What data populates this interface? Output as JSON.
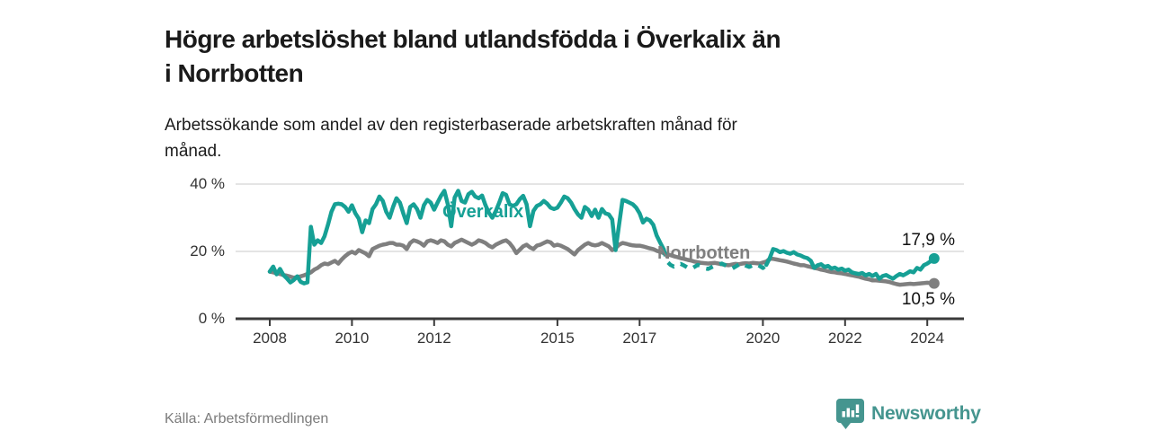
{
  "header": {
    "title_lines": [
      "Högre arbetslöshet bland utlandsfödda i Överkalix än",
      "i Norrbotten"
    ],
    "subtitle_lines": [
      "Arbetssökande som andel av den registerbaserade arbetskraften månad för",
      "månad."
    ]
  },
  "chart_data": {
    "type": "line",
    "unit": "%",
    "x_start_year": 2008,
    "x_step": "monthly",
    "ylim": [
      0,
      42
    ],
    "grid": true,
    "x_ticks": [
      {
        "label": "2008",
        "value": 2008
      },
      {
        "label": "2010",
        "value": 2010
      },
      {
        "label": "2012",
        "value": 2012
      },
      {
        "label": "2015",
        "value": 2015
      },
      {
        "label": "2017",
        "value": 2017
      },
      {
        "label": "2020",
        "value": 2020
      },
      {
        "label": "2022",
        "value": 2022
      },
      {
        "label": "2024",
        "value": 2024
      }
    ],
    "y_ticks": [
      {
        "label": "0 %",
        "value": 0
      },
      {
        "label": "20 %",
        "value": 20
      },
      {
        "label": "40 %",
        "value": 40
      }
    ],
    "series": [
      {
        "name": "Överkalix",
        "color": "#16a095",
        "end_label": "17,9 %",
        "dash_segment": {
          "from_index": 115,
          "to_index": 145
        },
        "values": [
          14.0,
          15.5,
          13.2,
          14.8,
          13.0,
          12.0,
          10.8,
          11.5,
          12.6,
          11.0,
          10.5,
          10.8,
          27.3,
          22.0,
          23.3,
          22.5,
          24.5,
          27.9,
          31.8,
          34.0,
          34.2,
          34.0,
          33.2,
          31.8,
          33.7,
          31.3,
          29.7,
          25.7,
          29.2,
          28.4,
          32.6,
          34.0,
          36.3,
          35.0,
          31.8,
          30.0,
          33.2,
          35.8,
          34.5,
          31.3,
          28.4,
          33.2,
          34.0,
          32.6,
          30.0,
          33.7,
          35.3,
          34.5,
          32.4,
          34.5,
          36.5,
          38.0,
          34.0,
          27.5,
          36.0,
          38.0,
          35.0,
          34.5,
          37.0,
          37.7,
          36.3,
          35.8,
          36.6,
          33.7,
          31.5,
          30.0,
          32.0,
          34.5,
          37.3,
          36.8,
          34.0,
          33.5,
          34.0,
          35.5,
          36.5,
          34.0,
          27.5,
          32.0,
          33.5,
          34.0,
          35.0,
          34.2,
          33.0,
          32.6,
          33.0,
          34.5,
          36.3,
          35.8,
          34.5,
          32.6,
          31.0,
          30.0,
          33.2,
          32.4,
          30.5,
          32.4,
          30.0,
          32.6,
          31.3,
          31.0,
          29.5,
          20.4,
          28.0,
          35.3,
          35.0,
          34.5,
          34.0,
          33.0,
          31.3,
          28.6,
          29.7,
          29.2,
          27.9,
          24.7,
          22.6,
          20.7,
          17.0,
          16.0,
          15.5,
          16.0,
          16.3,
          15.8,
          15.2,
          14.8,
          15.4,
          16.0,
          15.6,
          15.0,
          14.8,
          15.3,
          15.8,
          16.1,
          16.4,
          15.9,
          15.3,
          14.9,
          15.5,
          16.1,
          16.4,
          15.8,
          15.4,
          15.9,
          16.2,
          15.7,
          15.1,
          16.0,
          18.0,
          20.7,
          20.4,
          19.8,
          20.1,
          19.6,
          19.3,
          19.8,
          19.1,
          18.8,
          18.3,
          18.0,
          17.2,
          15.1,
          15.9,
          16.2,
          15.4,
          15.7,
          14.9,
          15.2,
          14.6,
          14.9,
          14.3,
          14.6,
          13.8,
          13.5,
          13.3,
          13.6,
          12.9,
          13.3,
          12.7,
          13.3,
          11.9,
          12.7,
          13.0,
          12.4,
          11.9,
          12.7,
          13.3,
          12.9,
          13.5,
          14.1,
          13.8,
          15.1,
          14.6,
          15.9,
          16.4,
          17.1,
          17.9
        ]
      },
      {
        "name": "Norrbotten",
        "color": "#7f7f7f",
        "end_label": "10,5 %",
        "values": [
          14.0,
          13.8,
          13.5,
          13.3,
          13.0,
          12.8,
          12.5,
          12.2,
          12.4,
          12.6,
          12.9,
          13.3,
          13.8,
          14.6,
          15.1,
          15.9,
          16.4,
          16.2,
          16.7,
          17.2,
          16.4,
          17.6,
          18.6,
          19.4,
          19.9,
          19.4,
          20.4,
          19.9,
          19.4,
          18.6,
          20.7,
          21.2,
          21.7,
          22.0,
          22.2,
          22.5,
          22.5,
          22.0,
          22.0,
          21.7,
          20.7,
          22.5,
          23.3,
          23.0,
          22.5,
          21.7,
          23.0,
          23.3,
          23.0,
          22.5,
          23.3,
          23.0,
          22.0,
          21.5,
          22.5,
          23.0,
          23.5,
          23.0,
          22.5,
          22.0,
          22.5,
          23.3,
          23.0,
          22.5,
          21.7,
          21.2,
          22.0,
          22.5,
          23.0,
          23.3,
          22.5,
          21.2,
          19.5,
          20.5,
          21.5,
          22.0,
          21.2,
          20.7,
          21.7,
          22.0,
          22.5,
          23.0,
          22.7,
          21.7,
          22.0,
          21.7,
          21.2,
          20.7,
          19.9,
          19.1,
          20.4,
          21.2,
          22.0,
          22.5,
          22.0,
          21.8,
          22.0,
          22.5,
          22.0,
          21.5,
          20.4,
          21.0,
          22.0,
          22.5,
          22.3,
          22.0,
          21.8,
          21.7,
          21.7,
          21.5,
          21.2,
          20.9,
          20.7,
          20.2,
          19.9,
          19.5,
          19.2,
          18.9,
          18.6,
          18.3,
          18.0,
          17.8,
          17.5,
          17.3,
          17.0,
          16.8,
          16.6,
          16.5,
          16.4,
          16.5,
          16.6,
          16.4,
          16.2,
          16.0,
          15.9,
          16.1,
          16.3,
          16.2,
          16.4,
          16.5,
          16.4,
          16.6,
          16.5,
          16.4,
          16.7,
          17.0,
          17.8,
          17.8,
          17.6,
          17.4,
          17.2,
          17.0,
          16.7,
          16.4,
          16.2,
          15.9,
          15.9,
          15.6,
          15.4,
          15.1,
          14.9,
          14.6,
          14.4,
          14.1,
          13.9,
          13.8,
          13.6,
          13.5,
          13.3,
          13.1,
          12.9,
          12.7,
          12.5,
          12.2,
          11.9,
          11.7,
          11.4,
          11.4,
          11.3,
          11.2,
          11.1,
          10.9,
          10.6,
          10.3,
          10.1,
          10.2,
          10.3,
          10.4,
          10.3,
          10.4,
          10.5,
          10.6,
          10.7,
          10.6,
          10.5
        ]
      }
    ],
    "series_labels": [
      {
        "text": "Överkalix",
        "x": 492,
        "y": 225,
        "color": "#16a095"
      },
      {
        "text": "Norrbotten",
        "x": 731,
        "y": 271,
        "color": "#7f7f7f"
      }
    ]
  },
  "footer": {
    "source": "Källa: Arbetsförmedlingen",
    "brand": "Newsworthy",
    "logo_color": "#45958f"
  },
  "colors": {
    "accent_teal": "#16a095",
    "neutral_gray": "#7f7f7f",
    "gridline": "#dcdcdc",
    "axis": "#3a3a3a"
  }
}
